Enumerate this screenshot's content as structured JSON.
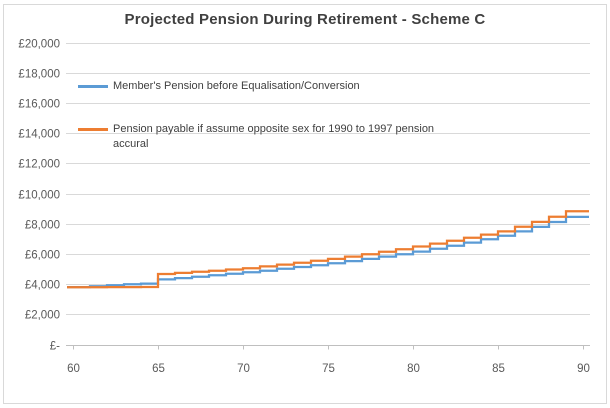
{
  "chart": {
    "title": "Projected Pension During Retirement - Scheme C",
    "legend": [
      {
        "label": "Member's Pension before Equalisation/Conversion",
        "color": "#5B9BD5"
      },
      {
        "label": "Pension payable if assume opposite sex for 1990 to 1997 pension accural",
        "color": "#ED7D31"
      }
    ],
    "colors": {
      "grid": "#D9D9D9",
      "axis": "#BFBFBF",
      "axis_text": "#595959",
      "title_text": "#404040",
      "legend_text": "#404040",
      "border": "#D9D9D9",
      "background": "#FFFFFF",
      "series_blue": "#5B9BD5",
      "series_orange": "#ED7D31"
    }
  },
  "chart_data": {
    "type": "line",
    "step": true,
    "title": "Projected Pension During Retirement - Scheme C",
    "xlabel": "",
    "ylabel": "",
    "xlim": [
      60,
      90
    ],
    "ylim": [
      0,
      20000
    ],
    "grid": "horizontal",
    "legend_position": "inside-top-left",
    "x": [
      60,
      61,
      62,
      63,
      64,
      65,
      66,
      67,
      68,
      69,
      70,
      71,
      72,
      73,
      74,
      75,
      76,
      77,
      78,
      79,
      80,
      81,
      82,
      83,
      84,
      85,
      86,
      87,
      88,
      89,
      90
    ],
    "x_ticks": [
      60,
      65,
      70,
      75,
      80,
      85,
      90
    ],
    "x_tick_labels": [
      "60",
      "65",
      "70",
      "75",
      "80",
      "85",
      "90"
    ],
    "y_ticks": [
      0,
      2000,
      4000,
      6000,
      8000,
      10000,
      12000,
      14000,
      16000,
      18000,
      20000
    ],
    "y_tick_labels": [
      "£-",
      "£2,000",
      "£4,000",
      "£6,000",
      "£8,000",
      "£10,000",
      "£12,000",
      "£14,000",
      "£16,000",
      "£18,000",
      "£20,000"
    ],
    "series": [
      {
        "name": "Member's Pension before Equalisation/Conversion",
        "color": "#5B9BD5",
        "values": [
          3800,
          3860,
          3930,
          3990,
          4030,
          4310,
          4400,
          4490,
          4580,
          4680,
          4780,
          4890,
          5010,
          5130,
          5250,
          5380,
          5520,
          5670,
          5820,
          5980,
          6150,
          6340,
          6540,
          6750,
          6970,
          7200,
          7490,
          7790,
          8110,
          8450,
          8450
        ]
      },
      {
        "name": "Pension payable if assume opposite sex for 1990 to 1997 pension accural",
        "color": "#ED7D31",
        "values": [
          3790,
          3790,
          3800,
          3800,
          3810,
          4670,
          4740,
          4820,
          4890,
          4970,
          5050,
          5170,
          5290,
          5410,
          5540,
          5670,
          5820,
          5980,
          6140,
          6310,
          6490,
          6680,
          6870,
          7070,
          7280,
          7490,
          7800,
          8120,
          8460,
          8820,
          8820
        ]
      }
    ]
  }
}
